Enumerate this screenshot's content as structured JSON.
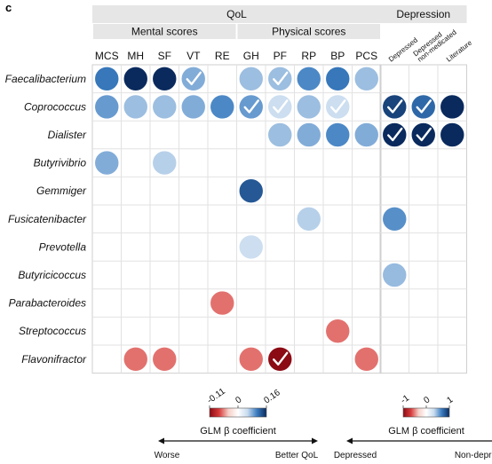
{
  "panel_label": "c",
  "chart_data": {
    "type": "heatmap",
    "groups": [
      {
        "label": "QoL",
        "subgroups": [
          {
            "label": "Mental scores",
            "columns": [
              "MCS",
              "MH",
              "SF",
              "VT",
              "RE"
            ]
          },
          {
            "label": "Physical scores",
            "columns": [
              "GH",
              "PF",
              "RP",
              "BP",
              "PCS"
            ]
          }
        ]
      },
      {
        "label": "Depression",
        "columns": [
          "Depressed",
          "Depressed non-medicated",
          "Literature"
        ]
      }
    ],
    "rows": [
      "Faecalibacterium",
      "Coprococcus",
      "Dialister",
      "Butyrivibrio",
      "Gemmiger",
      "Fusicatenibacter",
      "Prevotella",
      "Butyricicoccus",
      "Parabacteroides",
      "Streptococcus",
      "Flavonifractor"
    ],
    "qol_cells": [
      {
        "row": "Faecalibacterium",
        "col": "MCS",
        "value": 0.11,
        "check": false
      },
      {
        "row": "Faecalibacterium",
        "col": "MH",
        "value": 0.16,
        "check": false
      },
      {
        "row": "Faecalibacterium",
        "col": "SF",
        "value": 0.16,
        "check": false
      },
      {
        "row": "Faecalibacterium",
        "col": "VT",
        "value": 0.08,
        "check": true
      },
      {
        "row": "Faecalibacterium",
        "col": "GH",
        "value": 0.07,
        "check": false
      },
      {
        "row": "Faecalibacterium",
        "col": "PF",
        "value": 0.07,
        "check": true
      },
      {
        "row": "Faecalibacterium",
        "col": "RP",
        "value": 0.1,
        "check": false
      },
      {
        "row": "Faecalibacterium",
        "col": "BP",
        "value": 0.11,
        "check": false
      },
      {
        "row": "Faecalibacterium",
        "col": "PCS",
        "value": 0.07,
        "check": false
      },
      {
        "row": "Coprococcus",
        "col": "MCS",
        "value": 0.09,
        "check": false
      },
      {
        "row": "Coprococcus",
        "col": "MH",
        "value": 0.07,
        "check": false
      },
      {
        "row": "Coprococcus",
        "col": "SF",
        "value": 0.07,
        "check": false
      },
      {
        "row": "Coprococcus",
        "col": "VT",
        "value": 0.08,
        "check": false
      },
      {
        "row": "Coprococcus",
        "col": "RE",
        "value": 0.1,
        "check": false
      },
      {
        "row": "Coprococcus",
        "col": "GH",
        "value": 0.09,
        "check": true
      },
      {
        "row": "Coprococcus",
        "col": "PF",
        "value": 0.05,
        "check": true
      },
      {
        "row": "Coprococcus",
        "col": "RP",
        "value": 0.07,
        "check": false
      },
      {
        "row": "Coprococcus",
        "col": "BP",
        "value": 0.05,
        "check": true
      },
      {
        "row": "Dialister",
        "col": "PF",
        "value": 0.07,
        "check": false
      },
      {
        "row": "Dialister",
        "col": "RP",
        "value": 0.08,
        "check": false
      },
      {
        "row": "Dialister",
        "col": "BP",
        "value": 0.1,
        "check": false
      },
      {
        "row": "Dialister",
        "col": "PCS",
        "value": 0.08,
        "check": false
      },
      {
        "row": "Butyrivibrio",
        "col": "MCS",
        "value": 0.08,
        "check": false
      },
      {
        "row": "Butyrivibrio",
        "col": "SF",
        "value": 0.06,
        "check": false
      },
      {
        "row": "Gemmiger",
        "col": "GH",
        "value": 0.13,
        "check": false
      },
      {
        "row": "Fusicatenibacter",
        "col": "RP",
        "value": 0.06,
        "check": false
      },
      {
        "row": "Prevotella",
        "col": "GH",
        "value": 0.05,
        "check": false
      },
      {
        "row": "Parabacteroides",
        "col": "RE",
        "value": -0.06,
        "check": false
      },
      {
        "row": "Streptococcus",
        "col": "BP",
        "value": -0.06,
        "check": false
      },
      {
        "row": "Flavonifractor",
        "col": "MH",
        "value": -0.06,
        "check": false
      },
      {
        "row": "Flavonifractor",
        "col": "SF",
        "value": -0.06,
        "check": false
      },
      {
        "row": "Flavonifractor",
        "col": "GH",
        "value": -0.06,
        "check": false
      },
      {
        "row": "Flavonifractor",
        "col": "PF",
        "value": -0.11,
        "check": true
      },
      {
        "row": "Flavonifractor",
        "col": "PCS",
        "value": -0.06,
        "check": false
      }
    ],
    "depression_cells": [
      {
        "row": "Coprococcus",
        "col": "Depressed",
        "value": 0.9,
        "check": true
      },
      {
        "row": "Coprococcus",
        "col": "Depressed non-medicated",
        "value": 0.75,
        "check": true
      },
      {
        "row": "Coprococcus",
        "col": "Literature",
        "value": 1.0,
        "check": false
      },
      {
        "row": "Dialister",
        "col": "Depressed",
        "value": 1.0,
        "check": true
      },
      {
        "row": "Dialister",
        "col": "Depressed non-medicated",
        "value": 1.0,
        "check": true
      },
      {
        "row": "Dialister",
        "col": "Literature",
        "value": 1.0,
        "check": false
      },
      {
        "row": "Fusicatenibacter",
        "col": "Depressed",
        "value": 0.6,
        "check": false
      },
      {
        "row": "Butyricicoccus",
        "col": "Depressed",
        "value": 0.45,
        "check": false
      }
    ],
    "legends": [
      {
        "id": "qol",
        "range": [
          -0.11,
          0.16
        ],
        "ticks": [
          "-0.11",
          "0",
          "0.16"
        ],
        "title": "GLM β coefficient",
        "left_label": "Worse",
        "right_label": "Better QoL",
        "colors": [
          "#8b0a14",
          "#d73a3a",
          "#f6d0c8",
          "#ffffff",
          "#c9dcef",
          "#3a7cc0",
          "#0a2a5e"
        ]
      },
      {
        "id": "depression",
        "range": [
          -1,
          1
        ],
        "ticks": [
          "-1",
          "0",
          "1"
        ],
        "title": "GLM β coefficient",
        "left_label": "Depressed",
        "right_label": "Non-depressed",
        "colors": [
          "#8b0a14",
          "#d73a3a",
          "#f6d0c8",
          "#ffffff",
          "#c9dcef",
          "#3a7cc0",
          "#0a2a5e"
        ]
      }
    ],
    "grid": true
  }
}
